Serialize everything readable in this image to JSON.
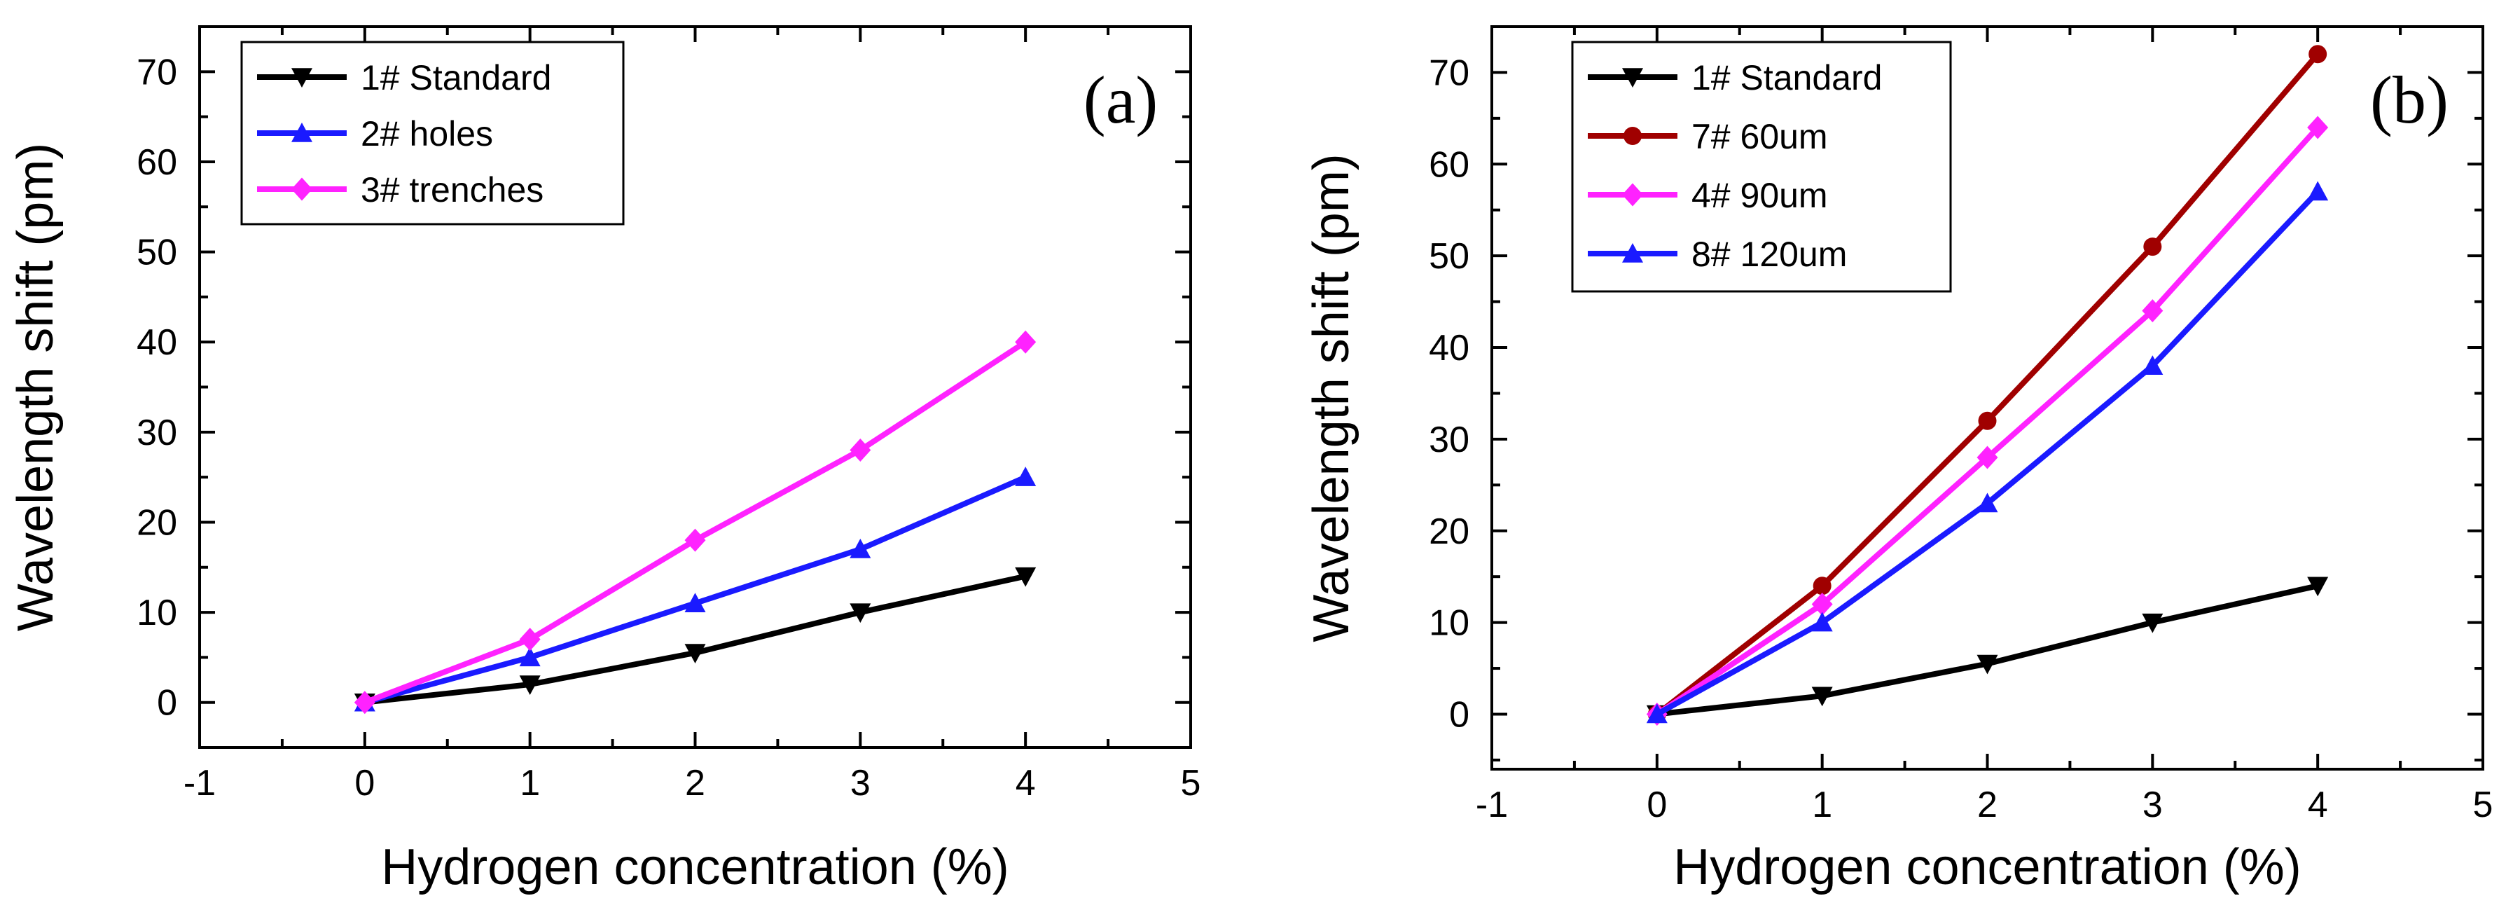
{
  "chart_data": [
    {
      "type": "line",
      "panel_label": "(a)",
      "xlabel": "Hydrogen concentration (%)",
      "ylabel": "Wavelength shift (pm)",
      "xlim": [
        -1,
        5
      ],
      "ylim": [
        -5,
        75
      ],
      "xticks": [
        -1,
        0,
        1,
        2,
        3,
        4,
        5
      ],
      "yticks": [
        0,
        10,
        20,
        30,
        40,
        50,
        60,
        70
      ],
      "legend_position": "top-left",
      "x": [
        0,
        1,
        2,
        3,
        4
      ],
      "series": [
        {
          "name": "1# Standard",
          "color": "#000000",
          "marker": "triangle-down",
          "values": [
            0,
            2,
            5.5,
            10,
            14
          ]
        },
        {
          "name": "2# holes",
          "color": "#1a1aff",
          "marker": "triangle-up",
          "values": [
            0,
            5,
            11,
            17,
            25
          ]
        },
        {
          "name": "3# trenches",
          "color": "#ff22ff",
          "marker": "diamond",
          "values": [
            0,
            7,
            18,
            28,
            40
          ]
        }
      ]
    },
    {
      "type": "line",
      "panel_label": "(b)",
      "xlabel": "Hydrogen concentration (%)",
      "ylabel": "Wavelength shift (pm)",
      "xlim": [
        -1,
        5
      ],
      "ylim": [
        -6,
        75
      ],
      "xticks": [
        -1,
        0,
        1,
        2,
        3,
        4,
        5
      ],
      "yticks": [
        0,
        10,
        20,
        30,
        40,
        50,
        60,
        70
      ],
      "legend_position": "top-left",
      "x": [
        0,
        1,
        2,
        3,
        4
      ],
      "series": [
        {
          "name": "1# Standard",
          "color": "#000000",
          "marker": "triangle-down",
          "values": [
            0,
            2,
            5.5,
            10,
            14
          ]
        },
        {
          "name": "7# 60um",
          "color": "#a00000",
          "marker": "circle",
          "values": [
            0,
            14,
            32,
            51,
            72
          ]
        },
        {
          "name": "4# 90um",
          "color": "#ff22ff",
          "marker": "diamond",
          "values": [
            0,
            12,
            28,
            44,
            64
          ]
        },
        {
          "name": "8# 120um",
          "color": "#1a1aff",
          "marker": "triangle-up",
          "values": [
            0,
            10,
            23,
            38,
            57
          ]
        }
      ]
    }
  ]
}
